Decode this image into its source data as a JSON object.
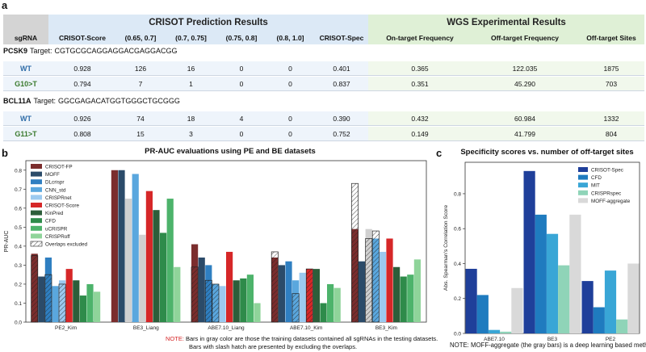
{
  "panel_letters": {
    "a": "a",
    "b": "b",
    "c": "c"
  },
  "table": {
    "group_headers": {
      "crisot": "CRISOT Prediction Results",
      "wgs": "WGS Experimental Results"
    },
    "col_headers": [
      "sgRNA",
      "CRISOT-Score",
      "(0.65, 0.7]",
      "(0.7, 0.75]",
      "(0.75, 0.8]",
      "(0.8, 1.0]",
      "CRISOT-Spec",
      "On-target Frequency",
      "Off-target Frequency",
      "Off-target Sites"
    ],
    "genes": [
      {
        "name": "PCSK9",
        "target_label": "Target:",
        "target": "CGTGCGCAGGAGGACGAGGACGG",
        "rows": [
          {
            "label": "WT",
            "values": [
              "0.928",
              "126",
              "16",
              "0",
              "0",
              "0.401",
              "0.365",
              "122.035",
              "1875"
            ]
          },
          {
            "label": "G10>T",
            "values": [
              "0.794",
              "7",
              "1",
              "0",
              "0",
              "0.837",
              "0.351",
              "45.290",
              "703"
            ]
          }
        ]
      },
      {
        "name": "BCL11A",
        "target_label": "Target:",
        "target": "GGCGAGACATGGTGGGCTGCGGG",
        "rows": [
          {
            "label": "WT",
            "values": [
              "0.926",
              "74",
              "18",
              "4",
              "0",
              "0.390",
              "0.432",
              "60.984",
              "1332"
            ]
          },
          {
            "label": "G11>T",
            "values": [
              "0.808",
              "15",
              "3",
              "0",
              "0",
              "0.752",
              "0.149",
              "41.799",
              "804"
            ]
          }
        ]
      }
    ]
  },
  "chart_b_notes": {
    "prefix": "NOTE:",
    "line1": " Bars in gray color are those the training datasets contained all sgRNAs in the testing datasets.",
    "line2": "Bars with slash hatch are presented by excluding the overlaps."
  },
  "chart_c_note": "NOTE: MOFF-aggregate (the gray bars) is a deep learning based method",
  "chart_data": [
    {
      "type": "bar",
      "title": "PR-AUC evaluations using PE and BE datasets",
      "ylabel": "PR-AUC",
      "xlabel": "",
      "ylim": [
        0,
        0.85
      ],
      "yticks": [
        0.0,
        0.1,
        0.2,
        0.3,
        0.4,
        0.5,
        0.6,
        0.7,
        0.8
      ],
      "legend_position": "top-left",
      "categories": [
        "PE2_Kim",
        "BE3_Liang",
        "ABE7.10_Liang",
        "ABE7.10_Kim",
        "BE3_Kim"
      ],
      "colors": [
        "#7b2d2d",
        "#2b4b69",
        "#2f7fc1",
        "#5aa7de",
        "#9ccaf0",
        "#d62728",
        "#2d5e3a",
        "#2e8b4a",
        "#4db36b",
        "#8fd49a"
      ],
      "series": [
        {
          "name": "CRISOT-FP",
          "values": [
            0.36,
            0.8,
            0.41,
            0.34,
            0.49
          ]
        },
        {
          "name": "MOFF",
          "values": [
            0.24,
            0.8,
            0.34,
            0.3,
            0.32
          ]
        },
        {
          "name": "DLcrispr",
          "values": [
            0.34,
            0.65,
            0.3,
            0.32,
            0.49
          ]
        },
        {
          "name": "CNN_std",
          "values": [
            0.19,
            0.78,
            0.2,
            0.22,
            0.44
          ]
        },
        {
          "name": "CRISPRnet",
          "values": [
            0.22,
            0.46,
            0.19,
            0.26,
            0.37
          ]
        },
        {
          "name": "CRISOT-Score",
          "values": [
            0.28,
            0.69,
            0.37,
            0.28,
            0.44
          ]
        },
        {
          "name": "KinPred",
          "values": [
            0.22,
            0.59,
            0.22,
            0.28,
            0.29
          ]
        },
        {
          "name": "CFD",
          "values": [
            0.14,
            0.47,
            0.23,
            0.1,
            0.24
          ]
        },
        {
          "name": "uCRISPR",
          "values": [
            0.2,
            0.65,
            0.25,
            0.2,
            0.25
          ]
        },
        {
          "name": "CRISPRoff",
          "values": [
            0.16,
            0.29,
            0.1,
            0.18,
            0.33
          ]
        }
      ],
      "gray_bars": [
        [
          1,
          2
        ],
        [
          1,
          4
        ],
        [
          4,
          2
        ]
      ],
      "overlap_excluded": [
        {
          "cat": 0,
          "series": 0,
          "value": 0.35
        },
        {
          "cat": 0,
          "series": 2,
          "value": 0.25
        },
        {
          "cat": 0,
          "series": 4,
          "value": 0.2
        },
        {
          "cat": 2,
          "series": 0,
          "value": 0.29
        },
        {
          "cat": 2,
          "series": 2,
          "value": 0.22
        },
        {
          "cat": 2,
          "series": 3,
          "value": 0.2
        },
        {
          "cat": 3,
          "series": 0,
          "value": 0.37
        },
        {
          "cat": 3,
          "series": 3,
          "value": 0.15
        },
        {
          "cat": 3,
          "series": 5,
          "value": 0.28
        },
        {
          "cat": 4,
          "series": 0,
          "value": 0.73
        },
        {
          "cat": 4,
          "series": 2,
          "value": 0.44
        },
        {
          "cat": 4,
          "series": 3,
          "value": 0.48
        }
      ],
      "overlap_legend": "Overlaps excluded"
    },
    {
      "type": "bar",
      "title": "Specificity scores vs. number of off-target sites",
      "ylabel": "Abs. Spearman's Correlation Score",
      "xlabel": "",
      "ylim": [
        0,
        0.98
      ],
      "yticks": [
        0.0,
        0.2,
        0.4,
        0.6,
        0.8
      ],
      "legend_position": "top-right",
      "categories": [
        "ABE7.10",
        "BE3",
        "PE2"
      ],
      "colors": [
        "#1f3f9a",
        "#1f7bbf",
        "#39a6d6",
        "#8fd4b8",
        "#d9d9d9"
      ],
      "series": [
        {
          "name": "CRISOT-Spec",
          "values": [
            0.37,
            0.93,
            0.3
          ]
        },
        {
          "name": "CFD",
          "values": [
            0.22,
            0.68,
            0.15
          ]
        },
        {
          "name": "MIT",
          "values": [
            0.02,
            0.57,
            0.36
          ]
        },
        {
          "name": "CRISPRspec",
          "values": [
            0.01,
            0.39,
            0.08
          ]
        },
        {
          "name": "MOFF-aggregate",
          "values": [
            0.26,
            0.68,
            0.4
          ]
        }
      ]
    }
  ]
}
